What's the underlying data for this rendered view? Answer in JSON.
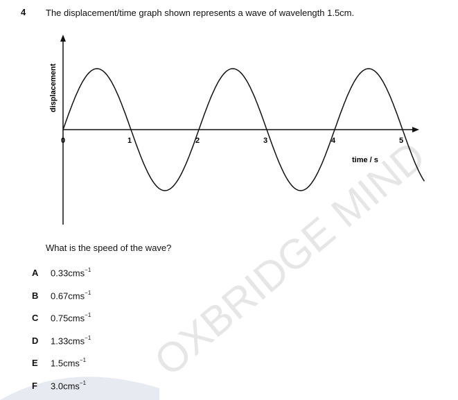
{
  "question": {
    "number": "4",
    "text": "The displacement/time graph shown represents a wave of wavelength 1.5cm."
  },
  "graph": {
    "y_label": "displacement",
    "x_label": "time / s",
    "x_ticks": [
      "0",
      "1",
      "2",
      "3",
      "4",
      "5"
    ]
  },
  "prompt": "What is the speed of the wave?",
  "options": [
    {
      "letter": "A",
      "value": "0.33cms",
      "exp": "−1"
    },
    {
      "letter": "B",
      "value": "0.67cms",
      "exp": "−1"
    },
    {
      "letter": "C",
      "value": "0.75cms",
      "exp": "−1"
    },
    {
      "letter": "D",
      "value": "1.33cms",
      "exp": "−1"
    },
    {
      "letter": "E",
      "value": "1.5cms",
      "exp": "−1"
    },
    {
      "letter": "F",
      "value": "3.0cms",
      "exp": "−1"
    }
  ],
  "watermark": "OXBRIDGE MIND",
  "colors": {
    "watermark": "#e6e6e6",
    "band": "#e8eaf2",
    "ink": "#111111"
  }
}
